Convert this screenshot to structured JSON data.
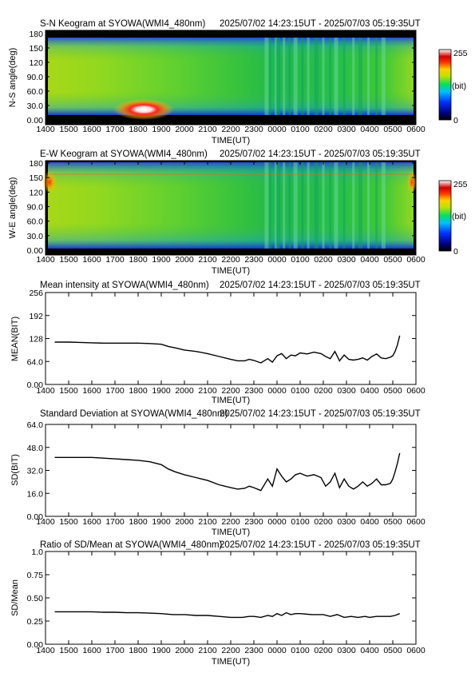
{
  "chart_data": [
    {
      "type": "heatmap",
      "title": "S-N Keogram at SYOWA(WMI4_480nm)",
      "time_range": "2025/07/02 14:23:15UT - 2025/07/03 05:19:35UT",
      "xlabel": "TIME(UT)",
      "ylabel": "N-S angle(deg)",
      "x_ticks": [
        "1400",
        "1500",
        "1600",
        "1700",
        "1800",
        "1900",
        "2000",
        "2100",
        "2200",
        "2300",
        "0000",
        "0100",
        "0200",
        "0300",
        "0400",
        "0500",
        "0600"
      ],
      "y_ticks": [
        "0.00",
        "30.0",
        "60.0",
        "90.0",
        "120",
        "150",
        "180"
      ],
      "ylim": [
        0,
        180
      ],
      "colorbar": {
        "min_label": "0",
        "max_label": "255",
        "unit": "(bit)"
      },
      "features": [
        {
          "desc": "bright auroral arc",
          "time": "1830",
          "angle_deg": 12,
          "intensity": 255
        }
      ]
    },
    {
      "type": "heatmap",
      "title": "E-W Keogram at SYOWA(WMI4_480nm)",
      "time_range": "2025/07/02 14:23:15UT - 2025/07/03 05:19:35UT",
      "xlabel": "TIME(UT)",
      "ylabel": "W-E angle(deg)",
      "x_ticks": [
        "1400",
        "1500",
        "1600",
        "1700",
        "1800",
        "1900",
        "2000",
        "2100",
        "2200",
        "2300",
        "0000",
        "0100",
        "0200",
        "0300",
        "0400",
        "0500",
        "0600"
      ],
      "y_ticks": [
        "0.00",
        "30.0",
        "60.0",
        "90.0",
        "120",
        "150",
        "180"
      ],
      "ylim": [
        0,
        180
      ],
      "colorbar": {
        "min_label": "0",
        "max_label": "255",
        "unit": "(bit)"
      }
    },
    {
      "type": "line",
      "title": "Mean intensity at SYOWA(WMI4_480nm)",
      "time_range": "2025/07/02 14:23:15UT - 2025/07/03 05:19:35UT",
      "xlabel": "TIME(UT)",
      "ylabel": "MEAN(BIT)",
      "x_ticks": [
        "1400",
        "1500",
        "1600",
        "1700",
        "1800",
        "1900",
        "2000",
        "2100",
        "2200",
        "2300",
        "0000",
        "0100",
        "0200",
        "0300",
        "0400",
        "0500",
        "0600"
      ],
      "y_ticks": [
        "0.00",
        "64.0",
        "128",
        "192",
        "256"
      ],
      "ylim": [
        0,
        256
      ],
      "series": [
        {
          "x": [
            14.4,
            15.0,
            15.5,
            16.0,
            16.5,
            17.0,
            17.5,
            18.0,
            18.5,
            19.0,
            19.3,
            19.6,
            20.0,
            20.5,
            21.0,
            21.5,
            22.0,
            22.3,
            22.6,
            22.8,
            23.0,
            23.3,
            23.6,
            23.8,
            24.0,
            24.2,
            24.4,
            24.6,
            24.8,
            25.0,
            25.3,
            25.6,
            25.9,
            26.1,
            26.3,
            26.5,
            26.7,
            26.9,
            27.1,
            27.3,
            27.5,
            27.7,
            27.9,
            28.1,
            28.3,
            28.5,
            28.7,
            28.9,
            29.0,
            29.1,
            29.2,
            29.3
          ],
          "y": [
            118,
            118,
            117,
            116,
            115,
            115,
            115,
            115,
            114,
            112,
            106,
            102,
            96,
            92,
            86,
            78,
            70,
            66,
            66,
            70,
            67,
            60,
            72,
            62,
            80,
            86,
            72,
            82,
            80,
            88,
            85,
            90,
            86,
            78,
            72,
            92,
            66,
            82,
            70,
            68,
            70,
            74,
            68,
            78,
            85,
            74,
            72,
            76,
            80,
            92,
            110,
            136
          ]
        }
      ]
    },
    {
      "type": "line",
      "title": "Standard Deviation at SYOWA(WMI4_480nm)",
      "time_range": "2025/07/02 14:23:15UT - 2025/07/03 05:19:35UT",
      "xlabel": "TIME(UT)",
      "ylabel": "SD(BIT)",
      "x_ticks": [
        "1400",
        "1500",
        "1600",
        "1700",
        "1800",
        "1900",
        "2000",
        "2100",
        "2200",
        "2300",
        "0000",
        "0100",
        "0200",
        "0300",
        "0400",
        "0500",
        "0600"
      ],
      "y_ticks": [
        "0.00",
        "16.0",
        "32.0",
        "48.0",
        "64.0"
      ],
      "ylim": [
        0,
        64
      ],
      "series": [
        {
          "x": [
            14.4,
            15.0,
            15.5,
            16.0,
            16.5,
            17.0,
            17.5,
            18.0,
            18.5,
            19.0,
            19.3,
            19.6,
            20.0,
            20.5,
            21.0,
            21.5,
            22.0,
            22.3,
            22.6,
            22.8,
            23.0,
            23.3,
            23.6,
            23.8,
            24.0,
            24.2,
            24.4,
            24.6,
            24.8,
            25.0,
            25.3,
            25.6,
            25.9,
            26.1,
            26.3,
            26.5,
            26.7,
            26.9,
            27.1,
            27.3,
            27.5,
            27.7,
            27.9,
            28.1,
            28.3,
            28.5,
            28.7,
            28.9,
            29.0,
            29.1,
            29.2,
            29.3
          ],
          "y": [
            41,
            41,
            41,
            41,
            40.5,
            40,
            39.5,
            39,
            38,
            36,
            33,
            31,
            29,
            27,
            25,
            22,
            20,
            19,
            19.5,
            21,
            20,
            18,
            26,
            21,
            33,
            28,
            24,
            26,
            29,
            30,
            28,
            29,
            27,
            21,
            24,
            30,
            20,
            26,
            21,
            19,
            21,
            24,
            21,
            23,
            26,
            22,
            22,
            23,
            26,
            31,
            37,
            44
          ]
        }
      ]
    },
    {
      "type": "line",
      "title": "Ratio of SD/Mean at SYOWA(WMI4_480nm)",
      "time_range": "2025/07/02 14:23:15UT - 2025/07/03 05:19:35UT",
      "xlabel": "TIME(UT)",
      "ylabel": "SD/Mean",
      "x_ticks": [
        "1400",
        "1500",
        "1600",
        "1700",
        "1800",
        "1900",
        "2000",
        "2100",
        "2200",
        "2300",
        "0000",
        "0100",
        "0200",
        "0300",
        "0400",
        "0500",
        "0600"
      ],
      "y_ticks": [
        "0.00",
        "0.25",
        "0.50",
        "0.75",
        "1.0"
      ],
      "ylim": [
        0,
        1
      ],
      "series": [
        {
          "x": [
            14.4,
            15.0,
            15.5,
            16.0,
            16.5,
            17.0,
            17.5,
            18.0,
            18.5,
            19.0,
            19.5,
            20.0,
            20.5,
            21.0,
            21.5,
            22.0,
            22.5,
            22.8,
            23.0,
            23.3,
            23.6,
            23.8,
            24.0,
            24.2,
            24.4,
            24.6,
            24.8,
            25.0,
            25.5,
            26.0,
            26.3,
            26.6,
            26.9,
            27.2,
            27.5,
            27.8,
            28.0,
            28.3,
            28.6,
            28.9,
            29.1,
            29.3
          ],
          "y": [
            0.35,
            0.35,
            0.35,
            0.35,
            0.345,
            0.345,
            0.34,
            0.34,
            0.335,
            0.33,
            0.32,
            0.32,
            0.31,
            0.31,
            0.3,
            0.29,
            0.29,
            0.3,
            0.3,
            0.29,
            0.31,
            0.3,
            0.33,
            0.31,
            0.34,
            0.32,
            0.33,
            0.33,
            0.32,
            0.32,
            0.3,
            0.32,
            0.29,
            0.3,
            0.29,
            0.3,
            0.29,
            0.3,
            0.3,
            0.3,
            0.31,
            0.33
          ]
        }
      ]
    }
  ]
}
